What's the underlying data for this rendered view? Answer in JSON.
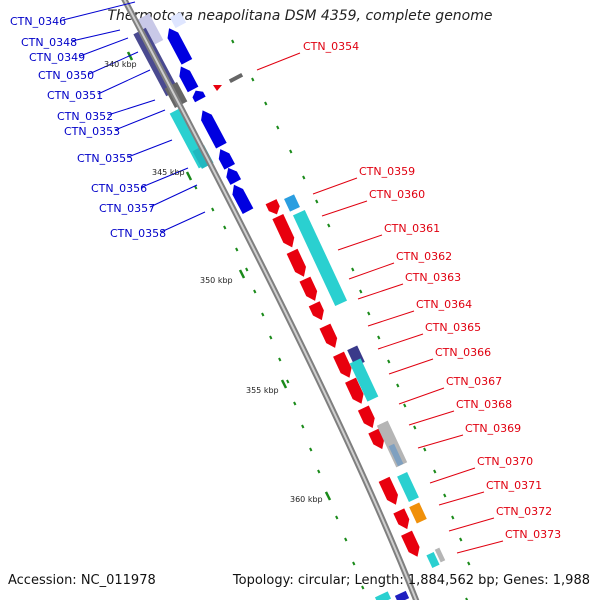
{
  "title": "Thermotoga neapolitana DSM 4359, complete genome",
  "footer": {
    "accession": "Accession: NC_011978",
    "topology": "Topology: circular; Length: 1,884,562 bp; Genes: 1,988"
  },
  "colors": {
    "backbone": "#9a9a9a",
    "forward_cds": "#e8000e",
    "reverse_cds": "#0000e0",
    "rna_cyan": "#2ad0d0",
    "dark_feature": "#4a4a90",
    "gray_feature": "#b5b5b5",
    "orange_feature": "#f0900a",
    "tick_green": "#1a8a1a"
  },
  "kbp_markers": [
    {
      "label": "340 kbp"
    },
    {
      "label": "345 kbp"
    },
    {
      "label": "350 kbp"
    },
    {
      "label": "355 kbp"
    },
    {
      "label": "360 kbp"
    }
  ],
  "reverse_labels": [
    "CTN_0346",
    "CTN_0348",
    "CTN_0349",
    "CTN_0350",
    "CTN_0351",
    "CTN_0352",
    "CTN_0353",
    "CTN_0355",
    "CTN_0356",
    "CTN_0357",
    "CTN_0358"
  ],
  "forward_labels": [
    "CTN_0354",
    "CTN_0359",
    "CTN_0360",
    "CTN_0361",
    "CTN_0362",
    "CTN_0363",
    "CTN_0364",
    "CTN_0365",
    "CTN_0366",
    "CTN_0367",
    "CTN_0368",
    "CTN_0369",
    "CTN_0370",
    "CTN_0371",
    "CTN_0372",
    "CTN_0373"
  ]
}
